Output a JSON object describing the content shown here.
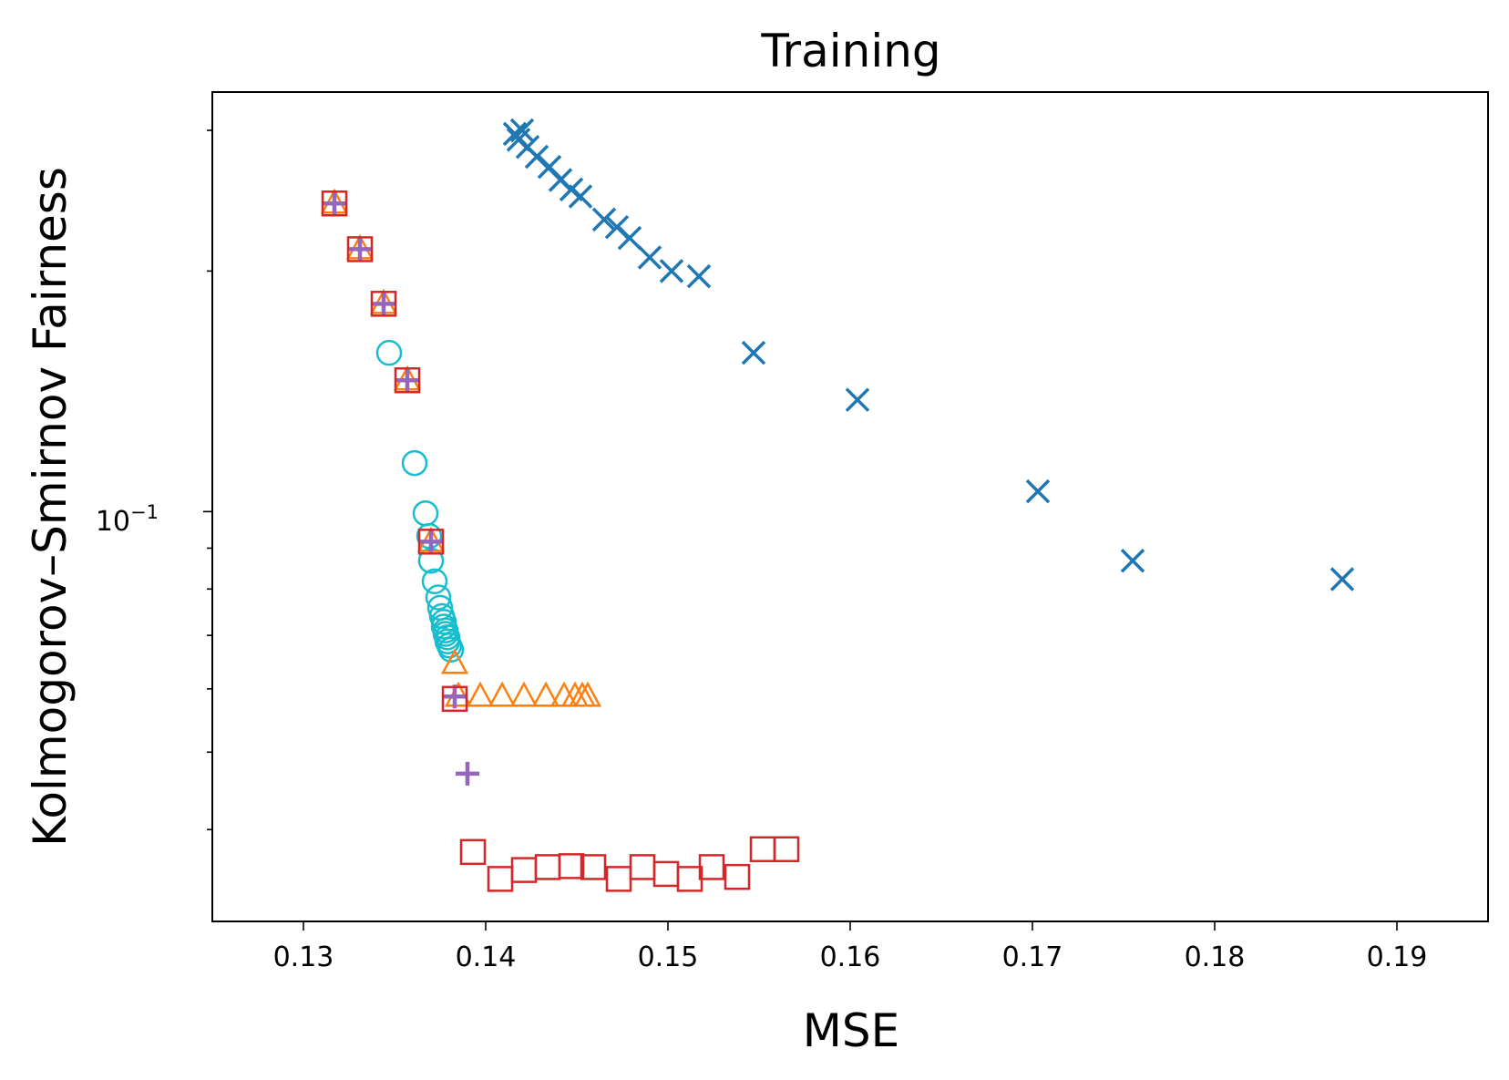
{
  "chart_data": {
    "type": "scatter",
    "title": "Training",
    "xlabel": "MSE",
    "ylabel": "Kolmogorov–Smirnov Fairness",
    "xscale": "linear",
    "yscale": "log",
    "xlim": [
      0.125,
      0.195
    ],
    "ylim": [
      0.0307,
      0.335
    ],
    "xticks": [
      0.13,
      0.14,
      0.15,
      0.16,
      0.17,
      0.18,
      0.19
    ],
    "xtick_labels": [
      "0.13",
      "0.14",
      "0.15",
      "0.16",
      "0.17",
      "0.18",
      "0.19"
    ],
    "ymajor_tick": 0.1,
    "ymajor_tick_base": "10",
    "ymajor_tick_exp": "−1",
    "yminor_ticks": [
      0.04,
      0.05,
      0.06,
      0.07,
      0.08,
      0.09,
      0.2,
      0.3
    ],
    "grid": false,
    "legend": "none",
    "series": [
      {
        "name": "blue-x",
        "marker": "x",
        "color": "#1f77b4",
        "points": [
          [
            0.1416,
            0.297
          ],
          [
            0.142,
            0.3
          ],
          [
            0.1418,
            0.292
          ],
          [
            0.1423,
            0.286
          ],
          [
            0.1428,
            0.278
          ],
          [
            0.1435,
            0.27
          ],
          [
            0.1441,
            0.26
          ],
          [
            0.1447,
            0.253
          ],
          [
            0.1452,
            0.248
          ],
          [
            0.1465,
            0.232
          ],
          [
            0.1472,
            0.227
          ],
          [
            0.1479,
            0.22
          ],
          [
            0.149,
            0.208
          ],
          [
            0.1502,
            0.2
          ],
          [
            0.1517,
            0.197
          ],
          [
            0.1547,
            0.158
          ],
          [
            0.1604,
            0.138
          ],
          [
            0.1703,
            0.106
          ],
          [
            0.1755,
            0.0868
          ],
          [
            0.187,
            0.0823
          ]
        ]
      },
      {
        "name": "cyan-circle",
        "marker": "o",
        "color": "#17becf",
        "points": [
          [
            0.1347,
            0.158
          ],
          [
            0.1361,
            0.115
          ],
          [
            0.1367,
            0.0995
          ],
          [
            0.1369,
            0.0932
          ],
          [
            0.137,
            0.0868
          ],
          [
            0.1372,
            0.0818
          ],
          [
            0.1374,
            0.0781
          ],
          [
            0.1375,
            0.0758
          ],
          [
            0.1376,
            0.074
          ],
          [
            0.1377,
            0.0728
          ],
          [
            0.1377,
            0.0718
          ],
          [
            0.1378,
            0.071
          ],
          [
            0.1378,
            0.0703
          ],
          [
            0.1379,
            0.0696
          ],
          [
            0.1379,
            0.0688
          ],
          [
            0.138,
            0.068
          ],
          [
            0.1381,
            0.0672
          ]
        ]
      },
      {
        "name": "orange-triangle",
        "marker": "^",
        "color": "#ff7f0e",
        "points": [
          [
            0.1317,
            0.243
          ],
          [
            0.1331,
            0.213
          ],
          [
            0.1344,
            0.182
          ],
          [
            0.1357,
            0.146
          ],
          [
            0.137,
            0.0917
          ],
          [
            0.1383,
            0.0645
          ],
          [
            0.1385,
            0.0587
          ],
          [
            0.1397,
            0.0587
          ],
          [
            0.1409,
            0.0587
          ],
          [
            0.1421,
            0.0587
          ],
          [
            0.1433,
            0.0587
          ],
          [
            0.1443,
            0.0587
          ],
          [
            0.1449,
            0.0587
          ],
          [
            0.1453,
            0.0587
          ],
          [
            0.1456,
            0.0587
          ]
        ]
      },
      {
        "name": "purple-plus",
        "marker": "+",
        "color": "#9467bd",
        "points": [
          [
            0.1317,
            0.243
          ],
          [
            0.1331,
            0.213
          ],
          [
            0.1344,
            0.182
          ],
          [
            0.1357,
            0.146
          ],
          [
            0.137,
            0.0917
          ],
          [
            0.1383,
            0.0587
          ],
          [
            0.139,
            0.047
          ]
        ]
      },
      {
        "name": "red-square",
        "marker": "s",
        "color": "#d62728",
        "points": [
          [
            0.1317,
            0.243
          ],
          [
            0.1331,
            0.213
          ],
          [
            0.1344,
            0.182
          ],
          [
            0.1357,
            0.146
          ],
          [
            0.137,
            0.0917
          ],
          [
            0.1383,
            0.0583
          ],
          [
            0.1393,
            0.0375
          ],
          [
            0.1408,
            0.0347
          ],
          [
            0.1421,
            0.0356
          ],
          [
            0.1434,
            0.0359
          ],
          [
            0.1447,
            0.036
          ],
          [
            0.1459,
            0.0359
          ],
          [
            0.1473,
            0.0347
          ],
          [
            0.1486,
            0.0359
          ],
          [
            0.1499,
            0.0352
          ],
          [
            0.1512,
            0.0347
          ],
          [
            0.1524,
            0.0359
          ],
          [
            0.1538,
            0.0349
          ],
          [
            0.1552,
            0.0378
          ],
          [
            0.1565,
            0.0378
          ]
        ]
      }
    ]
  }
}
